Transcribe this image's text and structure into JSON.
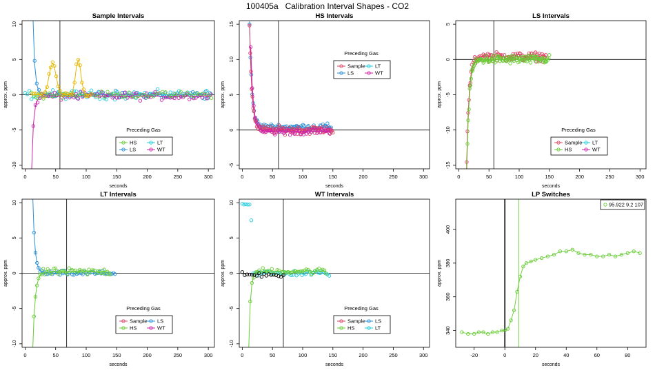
{
  "page_title": "100405a   Calibration Interval Shapes - CO2",
  "colors": {
    "HS": "#66cc33",
    "LS": "#2a8fd6",
    "LT": "#22ccdd",
    "WT": "#cc22aa",
    "Sample": "#dd4466",
    "SampleAlt": "#e6b800",
    "black": "#000000",
    "LP": "#66cc33"
  },
  "chart_data": [
    {
      "type": "scatter",
      "title": "Sample Intervals",
      "xlabel": "seconds",
      "ylabel": "approx. ppm",
      "xlim": [
        -5,
        310
      ],
      "ylim": [
        -10.5,
        10.5
      ],
      "xticks": [
        "0",
        "50",
        "100",
        "150",
        "200",
        "250",
        "300"
      ],
      "yticks": [
        "-10",
        "-5",
        "0",
        "5",
        "10"
      ],
      "vline": 57,
      "hline": 0,
      "legend_title": "Preceding Gas",
      "legend": [
        {
          "label": "HS",
          "color": "#66cc33"
        },
        {
          "label": "LT",
          "color": "#22ccdd"
        },
        {
          "label": "LS",
          "color": "#2a8fd6"
        },
        {
          "label": "WT",
          "color": "#cc22aa"
        }
      ],
      "series": [
        {
          "name": "LS",
          "color": "#2a8fd6",
          "t0": 12,
          "x_end": 305,
          "a": 13,
          "tau": 3.2,
          "base": 0,
          "noise": 0.8,
          "step": 3.5
        },
        {
          "name": "LT",
          "color": "#22ccdd",
          "t0": 0,
          "x_end": 305,
          "a": 0,
          "tau": 4,
          "base": 0,
          "noise": 0.9,
          "step": 3.5
        },
        {
          "name": "WT",
          "color": "#cc22aa",
          "t0": 10,
          "x_end": 305,
          "a": -12,
          "tau": 3.2,
          "base": -0.2,
          "noise": 0.8,
          "step": 3.5
        },
        {
          "name": "HS",
          "color": "#66cc33",
          "t0": 10,
          "x_end": 305,
          "a": 0,
          "tau": 4,
          "base": 0,
          "noise": 0.6,
          "step": 5
        },
        {
          "name": "Alt",
          "color": "#e6b800",
          "t0": 12,
          "x_end": 110,
          "a": 0,
          "tau": 4,
          "base": 0,
          "noise": 0.8,
          "step": 3,
          "bumps": [
            [
              45,
              4.5,
              8
            ],
            [
              87,
              5,
              6
            ]
          ]
        }
      ]
    },
    {
      "type": "scatter",
      "title": "HS Intervals",
      "xlabel": "seconds",
      "ylabel": "approx. ppm",
      "xlim": [
        -5,
        310
      ],
      "ylim": [
        -5.5,
        15.5
      ],
      "xticks": [
        "0",
        "50",
        "100",
        "150",
        "200",
        "250",
        "300"
      ],
      "yticks": [
        "-5",
        "0",
        "5",
        "10",
        "15"
      ],
      "vline": 60,
      "hline": 0,
      "legend_title": "Preceding Gas",
      "legend": [
        {
          "label": "Sample",
          "color": "#dd4466"
        },
        {
          "label": "LT",
          "color": "#22ccdd"
        },
        {
          "label": "LS",
          "color": "#2a8fd6"
        },
        {
          "label": "WT",
          "color": "#cc22aa"
        }
      ],
      "series": [
        {
          "name": "LS",
          "color": "#2a8fd6",
          "t0": 12,
          "x_end": 148,
          "a": 15,
          "tau": 4,
          "base": 0.4,
          "noise": 0.7,
          "step": 1.5
        },
        {
          "name": "Sample",
          "color": "#dd4466",
          "t0": 12,
          "x_end": 150,
          "a": 15,
          "tau": 4,
          "base": 0,
          "noise": 0.8,
          "step": 1.2
        },
        {
          "name": "WT",
          "color": "#cc22aa",
          "t0": 14,
          "x_end": 148,
          "a": 12,
          "tau": 4,
          "base": -0.2,
          "noise": 0.7,
          "step": 2.5
        }
      ]
    },
    {
      "type": "scatter",
      "title": "LS Intervals",
      "xlabel": "seconds",
      "ylabel": "approx. ppm",
      "xlim": [
        -5,
        310
      ],
      "ylim": [
        -15.5,
        5.5
      ],
      "xticks": [
        "0",
        "50",
        "100",
        "150",
        "200",
        "250",
        "300"
      ],
      "yticks": [
        "-15",
        "-10",
        "-5",
        "0",
        "5"
      ],
      "vline": 58,
      "hline": 0,
      "legend_title": "Preceding Gas",
      "legend": [
        {
          "label": "Sample",
          "color": "#dd4466"
        },
        {
          "label": "LT",
          "color": "#22ccdd"
        },
        {
          "label": "HS",
          "color": "#66cc33"
        },
        {
          "label": "WT",
          "color": "#cc22aa"
        }
      ],
      "series": [
        {
          "name": "Sample",
          "color": "#dd4466",
          "t0": 12,
          "x_end": 145,
          "a": -20,
          "tau": 4,
          "base": 0.4,
          "noise": 0.9,
          "step": 1.2
        },
        {
          "name": "HS",
          "color": "#66cc33",
          "t0": 12,
          "x_end": 150,
          "a": -22,
          "tau": 4,
          "base": 0,
          "noise": 0.9,
          "step": 1.2
        }
      ]
    },
    {
      "type": "scatter",
      "title": "LT Intervals",
      "xlabel": "seconds",
      "ylabel": "approx. ppm",
      "xlim": [
        -5,
        310
      ],
      "ylim": [
        -10.5,
        10.5
      ],
      "xticks": [
        "0",
        "50",
        "100",
        "150",
        "200",
        "250",
        "300"
      ],
      "yticks": [
        "-10",
        "-5",
        "0",
        "5",
        "10"
      ],
      "vline": 68,
      "hline": 0,
      "legend_title": "Preceding Gas",
      "legend": [
        {
          "label": "Sample",
          "color": "#dd4466"
        },
        {
          "label": "LS",
          "color": "#2a8fd6"
        },
        {
          "label": "HS",
          "color": "#66cc33"
        },
        {
          "label": "WT",
          "color": "#cc22aa"
        }
      ],
      "series": [
        {
          "name": "LS",
          "color": "#2a8fd6",
          "t0": 12,
          "x_end": 148,
          "a": 12,
          "tau": 3.5,
          "base": 0,
          "noise": 0.5,
          "step": 2.5
        },
        {
          "name": "HS",
          "color": "#66cc33",
          "t0": 12,
          "x_end": 140,
          "a": -12,
          "tau": 4,
          "base": 0.2,
          "noise": 0.7,
          "step": 2.5
        }
      ]
    },
    {
      "type": "scatter",
      "title": "WT Intervals",
      "xlabel": "seconds",
      "ylabel": "approx. ppm",
      "xlim": [
        -5,
        310
      ],
      "ylim": [
        -10.5,
        10.5
      ],
      "xticks": [
        "0",
        "50",
        "100",
        "150",
        "200",
        "250",
        "300"
      ],
      "yticks": [
        "-10",
        "-5",
        "0",
        "5",
        "10"
      ],
      "vline": 68,
      "hline": 0,
      "legend_title": "Preceding Gas",
      "legend": [
        {
          "label": "Sample",
          "color": "#dd4466"
        },
        {
          "label": "LS",
          "color": "#2a8fd6"
        },
        {
          "label": "HS",
          "color": "#66cc33"
        },
        {
          "label": "LT",
          "color": "#22ccdd"
        }
      ],
      "series": [
        {
          "name": "LT",
          "color": "#22ccdd",
          "t0": 0,
          "x_end": 145,
          "a": 0,
          "tau": 3,
          "base": 0,
          "noise": 0.6,
          "step": 3,
          "plateau": [
            [
              0,
              14,
              9.8
            ],
            [
              14,
              18,
              7.5
            ]
          ]
        },
        {
          "name": "HS",
          "color": "#66cc33",
          "t0": 10,
          "x_end": 140,
          "a": -13,
          "tau": 3,
          "base": 0.3,
          "noise": 0.7,
          "step": 3
        },
        {
          "name": "Black",
          "color": "#000000",
          "t0": 0,
          "x_end": 70,
          "a": 0,
          "tau": 4,
          "base": -0.2,
          "noise": 0.6,
          "step": 4
        }
      ]
    },
    {
      "type": "line",
      "title": "LP Switches",
      "xlabel": "seconds",
      "ylabel": "approx. ppm",
      "xlim": [
        -32,
        92
      ],
      "ylim": [
        330,
        418
      ],
      "xticks": [
        "-20",
        "0",
        "20",
        "40",
        "60",
        "80"
      ],
      "yticks": [
        "340",
        "360",
        "380",
        "400"
      ],
      "vline_black": 0,
      "vline_green": 9,
      "legend_entry": "95.922 9.2 107",
      "series": {
        "x": [
          -28,
          -24,
          -20,
          -17,
          -14,
          -11,
          -8,
          -5,
          -2,
          0,
          2,
          4,
          6,
          8,
          10,
          12,
          14,
          17,
          20,
          24,
          28,
          32,
          36,
          40,
          44,
          48,
          52,
          56,
          60,
          64,
          68,
          72,
          76,
          80,
          84,
          88
        ],
        "y": [
          339,
          338,
          338,
          339,
          339,
          338,
          339,
          339,
          340,
          340,
          341,
          346,
          352,
          363,
          372,
          378,
          380,
          381,
          382,
          383,
          384,
          385,
          387,
          387,
          388,
          386,
          385,
          385,
          384,
          384,
          385,
          384,
          385,
          386,
          387,
          386
        ]
      }
    }
  ]
}
